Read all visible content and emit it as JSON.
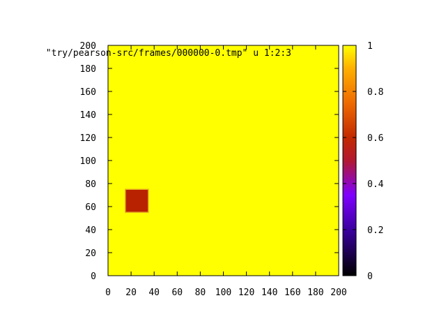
{
  "chart_data": {
    "type": "heatmap",
    "key_title": "\"try/pearson-src/frames/000000-0.tmp\" u 1:2:3",
    "xlim": [
      0,
      200
    ],
    "ylim": [
      0,
      200
    ],
    "x_ticks": [
      "0",
      "20",
      "40",
      "60",
      "80",
      "100",
      "120",
      "140",
      "160",
      "180",
      "200"
    ],
    "y_ticks": [
      "0",
      "20",
      "40",
      "60",
      "80",
      "100",
      "120",
      "140",
      "160",
      "180",
      "200"
    ],
    "background_value": 1,
    "regions": [
      {
        "x_range": [
          15,
          35
        ],
        "y_range": [
          55,
          75
        ],
        "value": 0.55
      }
    ],
    "colorbar": {
      "range": [
        0,
        1
      ],
      "ticks": [
        "0",
        "0.2",
        "0.4",
        "0.6",
        "0.8",
        "1"
      ],
      "palette": "black-blue-red-yellow"
    },
    "grid": false,
    "colors": {
      "high": "#ffff00",
      "region": "#b82200",
      "border": "#000000"
    }
  }
}
